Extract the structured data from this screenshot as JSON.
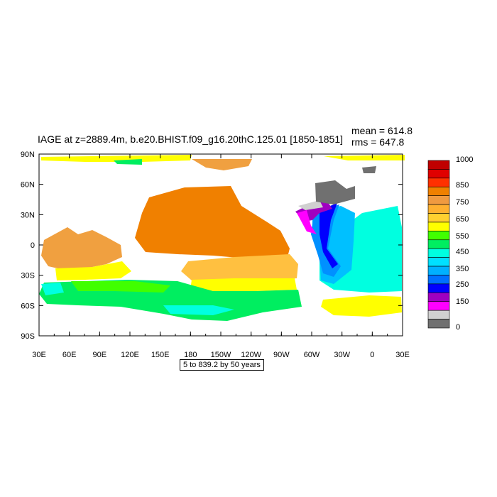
{
  "title": "IAGE at z=2889.4m, b.e20.BHIST.f09_g16.20thC.125.01 [1850-1851]",
  "stats": {
    "mean": "mean = 614.8",
    "rms": "rms = 647.8"
  },
  "axes": {
    "lat_labels": [
      "90N",
      "60N",
      "30N",
      "0",
      "30S",
      "60S",
      "90S"
    ],
    "lon_labels": [
      "30E",
      "60E",
      "90E",
      "120E",
      "150E",
      "180",
      "150W",
      "120W",
      "90W",
      "60W",
      "30W",
      "0",
      "30E"
    ]
  },
  "contour_info": "5 to 839.2 by 50 years",
  "colorbar": {
    "labels": [
      "1000",
      "850",
      "750",
      "650",
      "550",
      "450",
      "350",
      "250",
      "150",
      "0"
    ],
    "colors": [
      "#c00000",
      "#e00000",
      "#ff3000",
      "#f08000",
      "#f09a40",
      "#ffb030",
      "#ffd030",
      "#ffff00",
      "#40ff00",
      "#00ee60",
      "#00ffe0",
      "#00e0ff",
      "#00b0ff",
      "#0070ff",
      "#0000ff",
      "#a000c0",
      "#ff00ff",
      "#d0d0d0",
      "#707070"
    ]
  },
  "legend_colors": {
    "orange": "#f08000",
    "light_orange": "#f0a040",
    "amber": "#ffc040",
    "yellow": "#ffff00",
    "lime": "#40ff00",
    "green": "#00ee60",
    "cyan": "#00ffe0",
    "sky": "#00c0ff",
    "azure": "#0090ff",
    "blue": "#0000ff",
    "purple": "#a000c0",
    "magenta": "#ff00ff",
    "light_gray": "#d0d0d0",
    "gray": "#707070"
  }
}
